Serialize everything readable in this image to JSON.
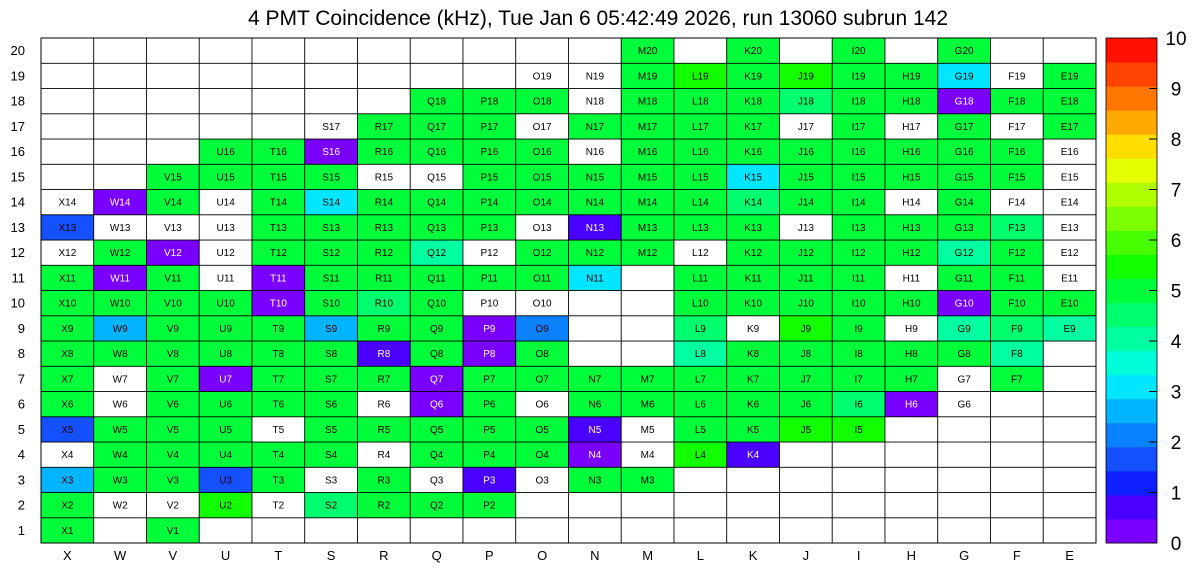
{
  "chart_data": {
    "type": "heatmap",
    "title": "4 PMT Coincidence (kHz), Tue Jan  6 05:42:49 2026, run 13060 subrun 142",
    "xlabel": "",
    "ylabel": "",
    "x_categories": [
      "X",
      "W",
      "V",
      "U",
      "T",
      "S",
      "R",
      "Q",
      "P",
      "O",
      "N",
      "M",
      "L",
      "K",
      "J",
      "I",
      "H",
      "G",
      "F",
      "E"
    ],
    "y_categories": [
      "1",
      "2",
      "3",
      "4",
      "5",
      "6",
      "7",
      "8",
      "9",
      "10",
      "11",
      "12",
      "13",
      "14",
      "15",
      "16",
      "17",
      "18",
      "19",
      "20"
    ],
    "zlim": [
      0,
      10
    ],
    "colorbar_ticks": [
      "0",
      "1",
      "2",
      "3",
      "4",
      "5",
      "6",
      "7",
      "8",
      "9",
      "10"
    ],
    "colorbar_colors": [
      "#7a00ff",
      "#4a00ff",
      "#0d1fff",
      "#1550ff",
      "#0a82ff",
      "#00b4ff",
      "#00e6ff",
      "#00ffd8",
      "#00ffa0",
      "#00ff6e",
      "#00ff3a",
      "#12ff00",
      "#47ff00",
      "#7cff00",
      "#b0ff00",
      "#e4ff00",
      "#ffde00",
      "#ffaa00",
      "#ff7600",
      "#ff4300",
      "#ff1100"
    ],
    "rows": {
      "20": [
        null,
        null,
        null,
        null,
        null,
        null,
        null,
        null,
        null,
        null,
        null,
        5,
        null,
        5,
        null,
        5,
        null,
        5,
        null,
        null
      ],
      "19": [
        null,
        null,
        null,
        null,
        null,
        null,
        null,
        null,
        null,
        0,
        0,
        5,
        5.5,
        5,
        5.5,
        5,
        5,
        3,
        0,
        5
      ],
      "18": [
        null,
        null,
        null,
        null,
        null,
        null,
        null,
        5,
        5,
        5,
        0,
        5,
        5,
        5,
        4.7,
        5,
        5,
        0.2,
        5,
        5
      ],
      "17": [
        null,
        null,
        null,
        null,
        null,
        0,
        5,
        5,
        5,
        0,
        5,
        5,
        5,
        5,
        0,
        5,
        0,
        5,
        0,
        5
      ],
      "16": [
        null,
        null,
        null,
        5,
        5,
        0.2,
        5,
        5,
        5,
        5,
        0,
        5,
        5,
        5,
        5,
        5,
        5,
        5,
        5,
        0
      ],
      "15": [
        null,
        null,
        5,
        5,
        5,
        5,
        0,
        0,
        5,
        5,
        5,
        5,
        5,
        3,
        5,
        5,
        5,
        5,
        5,
        0
      ],
      "14": [
        0,
        0.2,
        5,
        0,
        5,
        3,
        5,
        5,
        5,
        5,
        5,
        5,
        5,
        4.5,
        5,
        5,
        0,
        5,
        0,
        0
      ],
      "13": [
        1.8,
        0,
        0,
        0,
        5,
        5,
        5,
        5,
        5,
        0,
        0.5,
        5,
        5,
        5,
        0,
        5,
        5,
        5,
        4.8,
        0
      ],
      "12": [
        0,
        5,
        0.2,
        0,
        5,
        5,
        5,
        4,
        0,
        5,
        5,
        5,
        0,
        5,
        5,
        5,
        5,
        4,
        5,
        0
      ],
      "11": [
        5,
        0.2,
        5,
        0,
        0.2,
        5,
        5,
        5,
        5,
        5,
        3,
        null,
        5,
        5,
        5,
        5,
        0,
        5,
        5,
        0
      ],
      "10": [
        5,
        5,
        5,
        5,
        0.2,
        5,
        4.5,
        5,
        0,
        0,
        null,
        null,
        5,
        5,
        5,
        5,
        5,
        0.2,
        5,
        5
      ],
      "9": [
        5,
        2.5,
        5,
        5,
        5,
        2.5,
        5,
        5,
        0.2,
        2,
        null,
        null,
        4.6,
        0,
        5.5,
        5,
        0,
        4.2,
        4.6,
        4.2
      ],
      "8": [
        5,
        5,
        5,
        5,
        5,
        5,
        0.8,
        5,
        0.2,
        5,
        null,
        null,
        4,
        5,
        5,
        5,
        5,
        5,
        4,
        null
      ],
      "7": [
        5,
        0,
        5,
        0.2,
        5,
        5,
        5,
        0.2,
        5,
        5,
        5,
        5,
        5,
        5,
        5,
        5,
        5,
        0,
        5,
        null
      ],
      "6": [
        5,
        0,
        5,
        5,
        5,
        5,
        0,
        0.2,
        5,
        0,
        5,
        5,
        5,
        5,
        5,
        4.5,
        0.2,
        0,
        null,
        null
      ],
      "5": [
        1.8,
        5,
        5,
        5,
        0,
        5,
        5,
        5,
        5,
        5,
        0.5,
        0,
        5,
        5,
        5.5,
        5.5,
        null,
        null,
        null,
        null
      ],
      "4": [
        0,
        5,
        5,
        5,
        5,
        5,
        0,
        5,
        5,
        5,
        0.3,
        0,
        5.5,
        0.8,
        null,
        null,
        null,
        null,
        null,
        null
      ],
      "3": [
        2.5,
        5,
        5,
        1.5,
        5,
        0,
        5,
        0,
        0.5,
        0,
        5,
        5,
        null,
        null,
        null,
        null,
        null,
        null,
        null,
        null
      ],
      "2": [
        5,
        0,
        0,
        5.5,
        0,
        4.6,
        5,
        5,
        5,
        null,
        null,
        null,
        null,
        null,
        null,
        null,
        null,
        null,
        null,
        null
      ],
      "1": [
        5,
        null,
        5,
        null,
        null,
        null,
        null,
        null,
        null,
        null,
        null,
        null,
        null,
        null,
        null,
        null,
        null,
        null,
        null,
        null
      ]
    }
  }
}
